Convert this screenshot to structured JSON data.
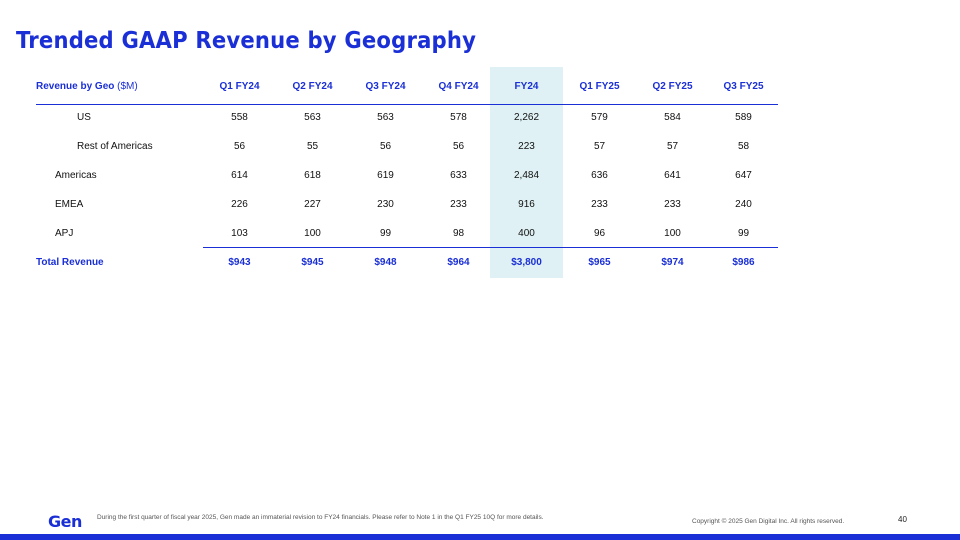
{
  "slide": {
    "title": "Trended GAAP Revenue by Geography",
    "page_number": "40"
  },
  "table": {
    "header_label": "Revenue by Geo",
    "header_unit": " ($M)",
    "columns": [
      "Q1 FY24",
      "Q2 FY24",
      "Q3 FY24",
      "Q4 FY24",
      "FY24",
      "Q1 FY25",
      "Q2 FY25",
      "Q3 FY25"
    ],
    "rows": [
      {
        "label": "US",
        "values": [
          "558",
          "563",
          "563",
          "578",
          "2,262",
          "579",
          "584",
          "589"
        ]
      },
      {
        "label": "Rest of Americas",
        "values": [
          "56",
          "55",
          "56",
          "56",
          "223",
          "57",
          "57",
          "58"
        ]
      },
      {
        "label": "Americas",
        "values": [
          "614",
          "618",
          "619",
          "633",
          "2,484",
          "636",
          "641",
          "647"
        ]
      },
      {
        "label": "EMEA",
        "values": [
          "226",
          "227",
          "230",
          "233",
          "916",
          "233",
          "233",
          "240"
        ]
      },
      {
        "label": "APJ",
        "values": [
          "103",
          "100",
          "99",
          "98",
          "400",
          "96",
          "100",
          "99"
        ]
      }
    ],
    "total": {
      "label": "Total Revenue",
      "values": [
        "$943",
        "$945",
        "$948",
        "$964",
        "$3,800",
        "$965",
        "$974",
        "$986"
      ]
    },
    "highlight_color": "#dff1f4",
    "accent_color": "#1a2fd6"
  },
  "footer": {
    "logo": "Gen",
    "note": "During the first quarter of fiscal year 2025, Gen made an immaterial revision to FY24 financials. Please refer to Note 1 in the Q1 FY25 10Q for more details.",
    "copyright": "Copyright © 2025 Gen Digital Inc. All rights reserved."
  }
}
